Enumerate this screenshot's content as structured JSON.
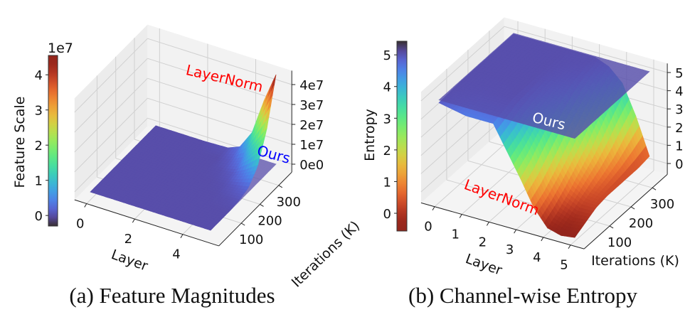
{
  "figures": {
    "a": {
      "caption": "(a) Feature Magnitudes"
    },
    "b": {
      "caption": "(b) Channel-wise Entropy"
    }
  },
  "chart_data": [
    {
      "type": "surface3d",
      "xlabel": "Layer",
      "ylabel": "Iterations (K)",
      "zlabel": "",
      "colorbar_label": "Feature Scale",
      "colorbar_offset": "1e7",
      "colormap": "turbo",
      "x_ticks": [
        "0",
        "2",
        "4"
      ],
      "x_tick_values": [
        0,
        2,
        4
      ],
      "y_ticks": [
        "100",
        "200",
        "300"
      ],
      "y_tick_values": [
        100,
        200,
        300
      ],
      "z_ticks": [
        "0e0",
        "1e7",
        "2e7",
        "3e7",
        "4e7"
      ],
      "z_tick_values": [
        0,
        1,
        2,
        3,
        4
      ],
      "colorbar_ticks": [
        "0",
        "1",
        "2",
        "3",
        "4"
      ],
      "colorbar_tick_values": [
        0,
        1,
        2,
        3,
        4
      ],
      "colorbar_range": [
        -0.3,
        4.55
      ],
      "layers": [
        0,
        1,
        2,
        3,
        3.5,
        4,
        4.5,
        5
      ],
      "iterations": [
        0,
        50,
        100,
        150,
        200,
        250,
        300,
        350
      ],
      "series": [
        {
          "name": "LayerNorm",
          "label_color": "#ff0000",
          "z": [
            [
              0,
              0,
              0,
              0,
              0,
              0,
              0,
              0
            ],
            [
              0,
              0,
              0,
              0,
              0,
              0,
              0,
              0
            ],
            [
              0,
              0,
              0,
              0,
              0,
              0,
              0,
              0
            ],
            [
              0,
              0,
              0,
              0,
              0,
              0,
              0,
              0.05
            ],
            [
              0,
              0,
              0,
              0,
              0,
              0.02,
              0.1,
              0.3
            ],
            [
              0,
              0,
              0,
              0,
              0.02,
              0.1,
              0.4,
              1.2
            ],
            [
              0,
              0,
              0,
              0.02,
              0.1,
              0.4,
              1.3,
              3.0
            ],
            [
              0,
              0,
              0,
              0.05,
              0.2,
              0.8,
              2.2,
              4.5
            ]
          ]
        },
        {
          "name": "Ours",
          "label_color": "#0000ff",
          "constant_z": 0
        }
      ]
    },
    {
      "type": "surface3d",
      "xlabel": "Layer",
      "ylabel": "Iterations (K)",
      "zlabel": "",
      "colorbar_label": "Entropy",
      "colormap": "turbo_r",
      "x_ticks": [
        "0",
        "1",
        "2",
        "3",
        "4",
        "5"
      ],
      "x_tick_values": [
        0,
        1,
        2,
        3,
        4,
        5
      ],
      "y_ticks": [
        "100",
        "200",
        "300"
      ],
      "y_tick_values": [
        100,
        200,
        300
      ],
      "z_ticks": [
        "0",
        "1",
        "2",
        "3",
        "4",
        "5"
      ],
      "z_tick_values": [
        0,
        1,
        2,
        3,
        4,
        5
      ],
      "colorbar_ticks": [
        "0",
        "1",
        "2",
        "3",
        "4",
        "5"
      ],
      "colorbar_tick_values": [
        0,
        1,
        2,
        3,
        4,
        5
      ],
      "colorbar_range": [
        -0.56,
        5.43
      ],
      "layers": [
        0,
        1,
        2,
        3,
        3.5,
        4,
        4.5,
        5
      ],
      "iterations": [
        0,
        50,
        100,
        150,
        200,
        250,
        300,
        350
      ],
      "series": [
        {
          "name": "LayerNorm",
          "label_color": "#ff0000",
          "z": [
            [
              4.9,
              4.95,
              5.0,
              5.0,
              5.0,
              5.0,
              5.0,
              5.0
            ],
            [
              4.6,
              4.8,
              4.95,
              5.0,
              5.0,
              5.0,
              5.0,
              5.0
            ],
            [
              4.6,
              4.8,
              5.0,
              5.0,
              5.0,
              5.0,
              5.0,
              5.0
            ],
            [
              2.0,
              2.5,
              3.2,
              3.8,
              4.3,
              4.7,
              4.9,
              5.0
            ],
            [
              0.6,
              1.0,
              1.6,
              2.3,
              3.0,
              3.7,
              4.3,
              4.7
            ],
            [
              -0.3,
              0.1,
              0.6,
              1.2,
              1.8,
              2.6,
              3.4,
              4.0
            ],
            [
              -0.5,
              -0.2,
              0.2,
              0.5,
              0.8,
              1.2,
              1.8,
              2.4
            ],
            [
              -0.4,
              -0.1,
              0.2,
              0.3,
              0.3,
              0.3,
              0.3,
              0.4
            ]
          ]
        },
        {
          "name": "Ours",
          "label_color": "#ffffff",
          "constant_z": 5.05
        }
      ]
    }
  ]
}
